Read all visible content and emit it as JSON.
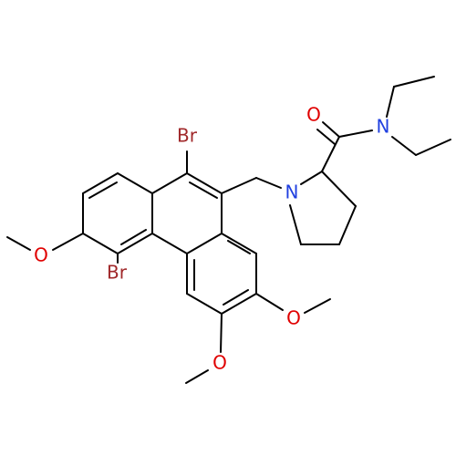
{
  "atoms": [
    {
      "label": "Br"
    },
    {
      "label": "Br"
    },
    {
      "label": "O"
    },
    {
      "label": "O"
    },
    {
      "label": "O"
    },
    {
      "label": "O"
    },
    {
      "label": "N"
    },
    {
      "label": "N"
    }
  ]
}
